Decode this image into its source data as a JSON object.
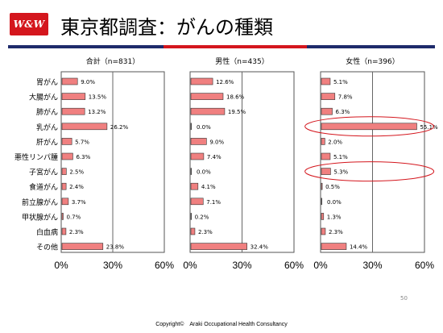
{
  "header": {
    "logo_text": "W&W",
    "title": "東京都調査：がんの種類",
    "colors": {
      "brand_red": "#d4161d",
      "navy": "#1e2a6b"
    }
  },
  "chart_data": [
    {
      "type": "bar",
      "orientation": "horizontal",
      "title": "合計（n=831）",
      "categories": [
        "胃がん",
        "大腸がん",
        "肺がん",
        "乳がん",
        "肝がん",
        "悪性リンパ腫",
        "子宮がん",
        "食道がん",
        "前立腺がん",
        "甲状腺がん",
        "白血病",
        "その他"
      ],
      "values": [
        9.0,
        13.5,
        13.2,
        26.2,
        5.7,
        6.3,
        2.5,
        2.4,
        3.7,
        0.7,
        2.3,
        23.8
      ],
      "value_labels": [
        "9.0%",
        "13.5%",
        "13.2%",
        "26.2%",
        "5.7%",
        "6.3%",
        "2.5%",
        "2.4%",
        "3.7%",
        "0.7%",
        "2.3%",
        "23.8%"
      ],
      "xlim": [
        0,
        60
      ],
      "xticks": [
        "0%",
        "30%",
        "60%"
      ],
      "bar_color": "#f08080",
      "highlight": []
    },
    {
      "type": "bar",
      "orientation": "horizontal",
      "title": "男性（n=435）",
      "categories": [
        "胃がん",
        "大腸がん",
        "肺がん",
        "乳がん",
        "肝がん",
        "悪性リンパ腫",
        "子宮がん",
        "食道がん",
        "前立腺がん",
        "甲状腺がん",
        "白血病",
        "その他"
      ],
      "values": [
        12.6,
        18.6,
        19.5,
        0.0,
        9.0,
        7.4,
        0.0,
        4.1,
        7.1,
        0.2,
        2.3,
        32.4
      ],
      "value_labels": [
        "12.6%",
        "18.6%",
        "19.5%",
        "0.0%",
        "9.0%",
        "7.4%",
        "0.0%",
        "4.1%",
        "7.1%",
        "0.2%",
        "2.3%",
        "32.4%"
      ],
      "xlim": [
        0,
        60
      ],
      "xticks": [
        "0%",
        "30%",
        "60%"
      ],
      "bar_color": "#f08080",
      "highlight": []
    },
    {
      "type": "bar",
      "orientation": "horizontal",
      "title": "女性（n=396）",
      "categories": [
        "胃がん",
        "大腸がん",
        "肺がん",
        "乳がん",
        "肝がん",
        "悪性リンパ腫",
        "子宮がん",
        "食道がん",
        "前立腺がん",
        "甲状腺がん",
        "白血病",
        "その他"
      ],
      "values": [
        5.1,
        7.8,
        6.3,
        55.1,
        2.0,
        5.1,
        5.3,
        0.5,
        0.0,
        1.3,
        2.3,
        14.4
      ],
      "value_labels": [
        "5.1%",
        "7.8%",
        "6.3%",
        "55.1%",
        "2.0%",
        "5.1%",
        "5.3%",
        "0.5%",
        "0.0%",
        "1.3%",
        "2.3%",
        "14.4%"
      ],
      "xlim": [
        0,
        60
      ],
      "xticks": [
        "0%",
        "30%",
        "60%"
      ],
      "bar_color": "#f08080",
      "highlight": [
        3,
        6
      ]
    }
  ],
  "footer": {
    "page_number": "50",
    "copyright": "Copyright©　Araki Occupational Health Consultancy"
  }
}
